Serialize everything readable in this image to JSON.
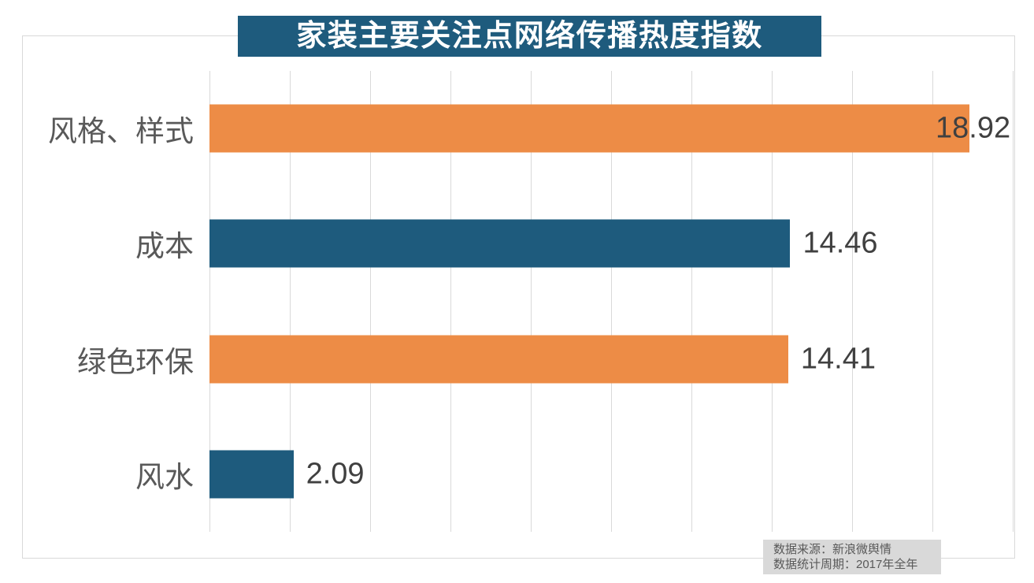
{
  "title": "家装主要关注点网络传播热度指数",
  "colors": {
    "title_bg": "#1E5B7D",
    "title_text": "#FFFFFF",
    "bar_orange": "#ED8C46",
    "bar_teal": "#1E5B7D",
    "gridline": "#D9D9D9",
    "frame_border": "#D9D9D9",
    "category_text": "#595959",
    "value_text": "#404040",
    "note_bg": "#D9D9D9",
    "note_text": "#595959"
  },
  "note": {
    "line1": "数据来源：新浪微舆情",
    "line2": "数据统计周期：2017年全年"
  },
  "chart_data": {
    "type": "bar",
    "orientation": "horizontal",
    "title": "家装主要关注点网络传播热度指数",
    "categories": [
      "风格、样式",
      "成本",
      "绿色环保",
      "风水"
    ],
    "values": [
      18.92,
      14.46,
      14.41,
      2.09
    ],
    "value_labels": [
      "18.92",
      "14.46",
      "14.41",
      "2.09"
    ],
    "bar_colors": [
      "#ED8C46",
      "#1E5B7D",
      "#ED8C46",
      "#1E5B7D"
    ],
    "xlim": [
      0,
      20
    ],
    "grid_step": 2,
    "grid": true,
    "legend": false,
    "xlabel": "",
    "ylabel": "",
    "annotations": [
      "数据来源：新浪微舆情",
      "数据统计周期：2017年全年"
    ]
  }
}
